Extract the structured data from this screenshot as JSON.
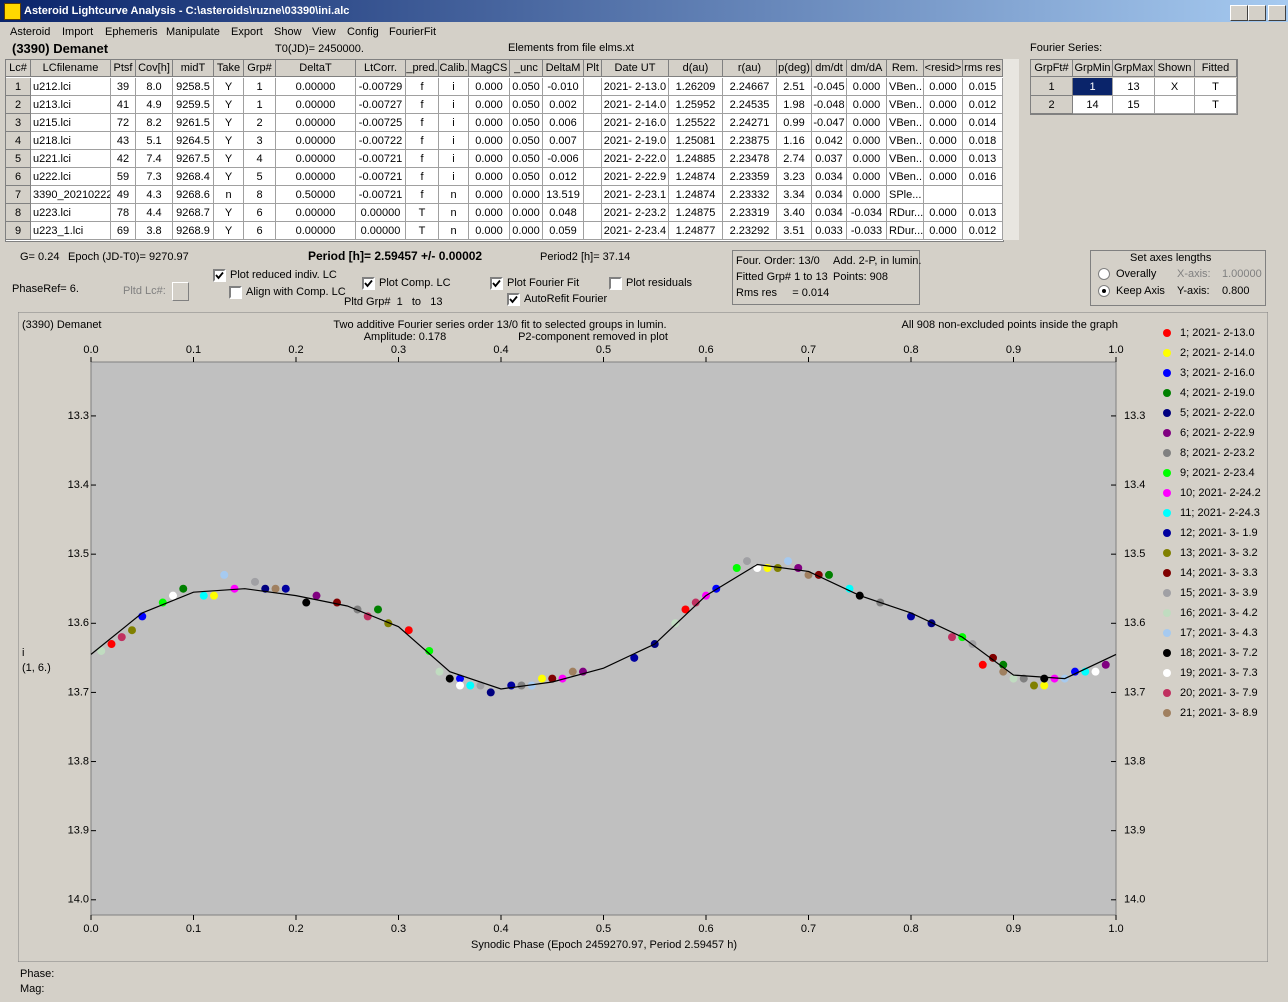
{
  "window": {
    "title": "Asteroid Lightcurve Analysis - C:\\asteroids\\ruzne\\03390\\ini.alc",
    "menu": [
      "Asteroid",
      "Import",
      "Ephemeris",
      "Manipulate",
      "Export",
      "Show",
      "View",
      "Config",
      "FourierFit"
    ]
  },
  "header": {
    "asteroid": "(3390) Demanet",
    "t0": "T0(JD)= 2450000.",
    "elements": "Elements from file elms.xt",
    "fourier_label": "Fourier Series:"
  },
  "table": {
    "headers": [
      "Lc#",
      "LCfilename",
      "Ptsf",
      "Cov[h]",
      "midT",
      "Take",
      "Grp#",
      "DeltaT",
      "LtCorr.",
      "_pred.",
      "Calib.",
      "MagCS",
      "_unc",
      "DeltaM",
      "Plt",
      "Date UT",
      "d(au)",
      "r(au)",
      "p(deg)",
      "dm/dt",
      "dm/dA",
      "Rem.",
      "<resid>",
      "rms res"
    ],
    "rows": [
      [
        "1",
        "u212.lci",
        "39",
        "8.0",
        "9258.5",
        "Y",
        "1",
        "0.00000",
        "-0.00729",
        "f",
        "i",
        "0.000",
        "0.050",
        "-0.010",
        null,
        "2021- 2-13.0",
        "1.26209",
        "2.24667",
        "2.51",
        "-0.045",
        "0.000",
        "VBen..",
        "0.000",
        "0.015"
      ],
      [
        "2",
        "u213.lci",
        "41",
        "4.9",
        "9259.5",
        "Y",
        "1",
        "0.00000",
        "-0.00727",
        "f",
        "i",
        "0.000",
        "0.050",
        "0.002",
        null,
        "2021- 2-14.0",
        "1.25952",
        "2.24535",
        "1.98",
        "-0.048",
        "0.000",
        "VBen..",
        "0.000",
        "0.012"
      ],
      [
        "3",
        "u215.lci",
        "72",
        "8.2",
        "9261.5",
        "Y",
        "2",
        "0.00000",
        "-0.00725",
        "f",
        "i",
        "0.000",
        "0.050",
        "0.006",
        null,
        "2021- 2-16.0",
        "1.25522",
        "2.24271",
        "0.99",
        "-0.047",
        "0.000",
        "VBen..",
        "0.000",
        "0.014"
      ],
      [
        "4",
        "u218.lci",
        "43",
        "5.1",
        "9264.5",
        "Y",
        "3",
        "0.00000",
        "-0.00722",
        "f",
        "i",
        "0.000",
        "0.050",
        "0.007",
        null,
        "2021- 2-19.0",
        "1.25081",
        "2.23875",
        "1.16",
        "0.042",
        "0.000",
        "VBen..",
        "0.000",
        "0.018"
      ],
      [
        "5",
        "u221.lci",
        "42",
        "7.4",
        "9267.5",
        "Y",
        "4",
        "0.00000",
        "-0.00721",
        "f",
        "i",
        "0.000",
        "0.050",
        "-0.006",
        null,
        "2021- 2-22.0",
        "1.24885",
        "2.23478",
        "2.74",
        "0.037",
        "0.000",
        "VBen..",
        "0.000",
        "0.013"
      ],
      [
        "6",
        "u222.lci",
        "59",
        "7.3",
        "9268.4",
        "Y",
        "5",
        "0.00000",
        "-0.00721",
        "f",
        "i",
        "0.000",
        "0.050",
        "0.012",
        null,
        "2021- 2-22.9",
        "1.24874",
        "2.23359",
        "3.23",
        "0.034",
        "0.000",
        "VBen..",
        "0.000",
        "0.016"
      ],
      [
        "7",
        "3390_20210222",
        "49",
        "4.3",
        "9268.6",
        "n",
        "8",
        "0.50000",
        "-0.00721",
        "f",
        "n",
        "0.000",
        "0.000",
        "13.519",
        null,
        "2021- 2-23.1",
        "1.24874",
        "2.23332",
        "3.34",
        "0.034",
        "0.000",
        "SPle...",
        null,
        null
      ],
      [
        "8",
        "u223.lci",
        "78",
        "4.4",
        "9268.7",
        "Y",
        "6",
        "0.00000",
        "0.00000",
        "T",
        "n",
        "0.000",
        "0.000",
        "0.048",
        null,
        "2021- 2-23.2",
        "1.24875",
        "2.23319",
        "3.40",
        "0.034",
        "-0.034",
        "RDur...",
        "0.000",
        "0.013"
      ],
      [
        "9",
        "u223_1.lci",
        "69",
        "3.8",
        "9268.9",
        "Y",
        "6",
        "0.00000",
        "0.00000",
        "T",
        "n",
        "0.000",
        "0.000",
        "0.059",
        null,
        "2021- 2-23.4",
        "1.24877",
        "2.23292",
        "3.51",
        "0.033",
        "-0.033",
        "RDur...",
        "0.000",
        "0.012"
      ]
    ]
  },
  "fourier_table": {
    "headers": [
      "GrpFt#",
      "GrpMin",
      "GrpMax",
      "Shown",
      "Fitted"
    ],
    "rows": [
      [
        "1",
        "1",
        "13",
        "X",
        "T"
      ],
      [
        "2",
        "14",
        "15",
        null,
        "T"
      ]
    ]
  },
  "controls": {
    "g": "G= 0.24",
    "epoch": "Epoch (JD-T0)= 9270.97",
    "period": "Period [h]= 2.59457 +/- 0.00002",
    "period2": "Period2 [h]= 37.14",
    "phase_ref": "PhaseRef= 6.",
    "pltd_lc": "Pltd Lc#:",
    "pltd_grp": "Pltd Grp#  1   to   13",
    "checkboxes": [
      {
        "label": "Plot reduced indiv. LC",
        "checked": true
      },
      {
        "label": "Align with Comp. LC",
        "checked": false
      },
      {
        "label": "Plot Comp. LC",
        "checked": true
      },
      {
        "label": "Plot Fourier Fit",
        "checked": true
      },
      {
        "label": "AutoRefit Fourier",
        "checked": true
      },
      {
        "label": "Plot residuals",
        "checked": false
      }
    ]
  },
  "info_box": [
    "Four. Order: 13/0",
    "Add. 2-P, in lumin.",
    "Fitted Grp# 1 to 13",
    "Points: 908",
    "Rms res     = 0.014"
  ],
  "axes_box": {
    "title": "Set axes lengths",
    "radios": [
      {
        "label": "Overally",
        "checked": false
      },
      {
        "label": "Keep Axis",
        "checked": true
      }
    ],
    "x_label": "X-axis:",
    "x_value": "1.00000",
    "y_label": "Y-axis:",
    "y_value": "0.800"
  },
  "chart_data": {
    "type": "scatter",
    "title": "(3390) Demanet",
    "subtitle": "Two additive Fourier series order 13/0 fit to selected groups in lumin.",
    "annotations": [
      "Amplitude: 0.178",
      "P2-component removed in plot",
      "All 908 non-excluded points inside the graph"
    ],
    "xlabel": "Synodic Phase (Epoch 2459270.97, Period 2.59457 h)",
    "ylabel": "i",
    "ylabel_sub": "(1, 6.)",
    "xlim": [
      0,
      1
    ],
    "ylim": [
      13.222,
      14.022
    ],
    "y_inverted": true,
    "xticks": [
      {
        "value": 0,
        "label": "0.0"
      },
      0.1,
      0.2,
      0.3,
      0.4,
      0.5,
      0.6,
      0.7,
      0.8,
      0.9,
      {
        "value": 1,
        "label": "1.0"
      }
    ],
    "yticks": [
      13.3,
      13.4,
      13.5,
      13.6,
      13.7,
      13.8,
      13.9,
      {
        "value": 14,
        "label": "14.0"
      }
    ],
    "plot_background": "#c0c0c0",
    "fit": {
      "color": "#000000",
      "x": [
        0,
        0.05,
        0.1,
        0.15,
        0.2,
        0.25,
        0.3,
        0.35,
        0.4,
        0.45,
        0.5,
        0.55,
        0.6,
        0.65,
        0.7,
        0.75,
        0.8,
        0.85,
        0.9,
        0.95,
        1
      ],
      "y": [
        13.645,
        13.585,
        13.555,
        13.55,
        13.56,
        13.575,
        13.605,
        13.67,
        13.695,
        13.685,
        13.665,
        13.63,
        13.56,
        13.515,
        13.525,
        13.56,
        13.585,
        13.62,
        13.675,
        13.68,
        13.645
      ]
    },
    "series": [
      {
        "name": "1; 2021- 2-13.0",
        "color": "#ff0000",
        "x": [
          0.02,
          0.31,
          0.58,
          0.87
        ],
        "y": [
          13.63,
          13.61,
          13.58,
          13.66
        ]
      },
      {
        "name": "2; 2021- 2-14.0",
        "color": "#ffff00",
        "x": [
          0.12,
          0.44,
          0.66,
          0.93
        ],
        "y": [
          13.56,
          13.68,
          13.52,
          13.69
        ]
      },
      {
        "name": "3; 2021- 2-16.0",
        "color": "#0000ff",
        "x": [
          0.05,
          0.36,
          0.61,
          0.96
        ],
        "y": [
          13.59,
          13.68,
          13.55,
          13.67
        ]
      },
      {
        "name": "4; 2021- 2-19.0",
        "color": "#008000",
        "x": [
          0.09,
          0.28,
          0.72,
          0.89
        ],
        "y": [
          13.55,
          13.58,
          13.53,
          13.66
        ]
      },
      {
        "name": "5; 2021- 2-22.0",
        "color": "#000080",
        "x": [
          0.17,
          0.39,
          0.55,
          0.82
        ],
        "y": [
          13.55,
          13.7,
          13.63,
          13.6
        ]
      },
      {
        "name": "6; 2021- 2-22.9",
        "color": "#800080",
        "x": [
          0.22,
          0.48,
          0.69,
          0.99
        ],
        "y": [
          13.56,
          13.67,
          13.52,
          13.66
        ]
      },
      {
        "name": "8; 2021- 2-23.2",
        "color": "#808080",
        "x": [
          0.26,
          0.42,
          0.77,
          0.91
        ],
        "y": [
          13.58,
          13.69,
          13.57,
          13.68
        ]
      },
      {
        "name": "9; 2021- 2-23.4",
        "color": "#00ff00",
        "x": [
          0.07,
          0.33,
          0.63,
          0.85
        ],
        "y": [
          13.57,
          13.64,
          13.52,
          13.62
        ]
      },
      {
        "name": "10; 2021- 2-24.2",
        "color": "#ff00ff",
        "x": [
          0.14,
          0.46,
          0.6,
          0.94
        ],
        "y": [
          13.55,
          13.68,
          13.56,
          13.68
        ]
      },
      {
        "name": "11; 2021- 2-24.3",
        "color": "#00ffff",
        "x": [
          0.11,
          0.37,
          0.74,
          0.97
        ],
        "y": [
          13.56,
          13.69,
          13.55,
          13.67
        ]
      },
      {
        "name": "12; 2021- 3- 1.9",
        "color": "#0000a0",
        "x": [
          0.19,
          0.41,
          0.53,
          0.8
        ],
        "y": [
          13.55,
          13.69,
          13.65,
          13.59
        ]
      },
      {
        "name": "13; 2021- 3- 3.2",
        "color": "#808000",
        "x": [
          0.04,
          0.29,
          0.67,
          0.92
        ],
        "y": [
          13.61,
          13.6,
          13.52,
          13.69
        ]
      },
      {
        "name": "14; 2021- 3- 3.3",
        "color": "#800000",
        "x": [
          0.24,
          0.45,
          0.71,
          0.88
        ],
        "y": [
          13.57,
          13.68,
          13.53,
          13.65
        ]
      },
      {
        "name": "15; 2021- 3- 3.9",
        "color": "#a0a0a4",
        "x": [
          0.16,
          0.38,
          0.64,
          0.86
        ],
        "y": [
          13.54,
          13.69,
          13.51,
          13.63
        ]
      },
      {
        "name": "16; 2021- 3- 4.2",
        "color": "#c0dcc0",
        "x": [
          0.01,
          0.34,
          0.57,
          0.9
        ],
        "y": [
          13.64,
          13.67,
          13.6,
          13.68
        ]
      },
      {
        "name": "17; 2021- 3- 4.3",
        "color": "#a6caf0",
        "x": [
          0.13,
          0.43,
          0.68,
          0.95
        ],
        "y": [
          13.53,
          13.69,
          13.51,
          13.68
        ]
      },
      {
        "name": "18; 2021- 3- 7.2",
        "color": "#000000",
        "x": [
          0.21,
          0.35,
          0.75,
          0.93
        ],
        "y": [
          13.57,
          13.68,
          13.56,
          13.68
        ]
      },
      {
        "name": "19; 2021- 3- 7.3",
        "color": "#ffffff",
        "x": [
          0.08,
          0.36,
          0.65,
          0.98
        ],
        "y": [
          13.56,
          13.69,
          13.52,
          13.67
        ]
      },
      {
        "name": "20; 2021- 3- 7.9",
        "color": "#c03060",
        "x": [
          0.03,
          0.27,
          0.59,
          0.84
        ],
        "y": [
          13.62,
          13.59,
          13.57,
          13.62
        ]
      },
      {
        "name": "21; 2021- 3- 8.9",
        "color": "#a08060",
        "x": [
          0.18,
          0.47,
          0.7,
          0.89
        ],
        "y": [
          13.55,
          13.67,
          13.53,
          13.67
        ]
      }
    ]
  },
  "status": [
    "Phase:",
    "Mag:"
  ]
}
